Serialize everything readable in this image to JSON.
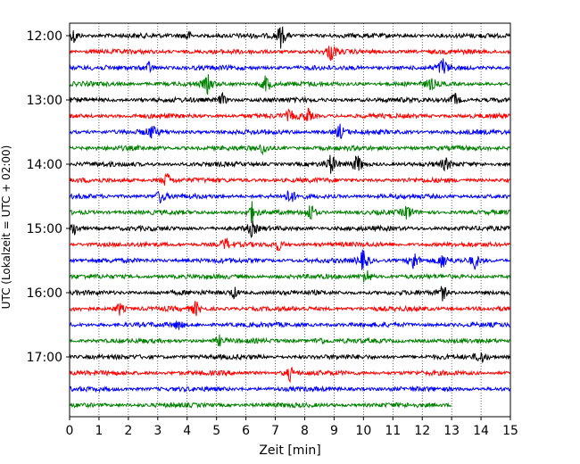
{
  "chart_data": {
    "type": "line",
    "title": "",
    "xlabel": "Zeit  [min]",
    "ylabel": "UTC (Lokalzeit = UTC + 02:00)",
    "xlim": [
      0,
      15
    ],
    "x_ticks": [
      "0",
      "1",
      "2",
      "3",
      "4",
      "5",
      "6",
      "7",
      "8",
      "9",
      "10",
      "11",
      "12",
      "13",
      "14",
      "15"
    ],
    "y_ticks": [
      "12:00",
      "13:00",
      "14:00",
      "15:00",
      "16:00",
      "17:00"
    ],
    "trace_interval_min": 15,
    "first_trace": "12:00",
    "grid": "vertical-dotted",
    "trace_colors": [
      "#000000",
      "#ff0000",
      "#0000ff",
      "#008000"
    ],
    "traces": [
      {
        "start": "12:00",
        "color": "#000000",
        "end_min": 15,
        "events": [
          [
            0.15,
            2.0
          ],
          [
            4.0,
            1.5
          ],
          [
            7.2,
            3.2
          ]
        ]
      },
      {
        "start": "12:15",
        "color": "#ff0000",
        "end_min": 15,
        "events": [
          [
            8.9,
            2.4
          ]
        ]
      },
      {
        "start": "12:30",
        "color": "#0000ff",
        "end_min": 15,
        "events": [
          [
            2.7,
            1.5
          ],
          [
            12.7,
            2.6
          ]
        ]
      },
      {
        "start": "12:45",
        "color": "#008000",
        "end_min": 15,
        "events": [
          [
            4.7,
            2.2
          ],
          [
            6.7,
            2.6
          ],
          [
            12.3,
            1.5
          ]
        ]
      },
      {
        "start": "13:00",
        "color": "#000000",
        "end_min": 15,
        "events": [
          [
            5.2,
            1.5
          ],
          [
            13.1,
            2.0
          ]
        ]
      },
      {
        "start": "13:15",
        "color": "#ff0000",
        "end_min": 15,
        "events": [
          [
            7.5,
            1.5
          ],
          [
            8.1,
            2.0
          ]
        ]
      },
      {
        "start": "13:30",
        "color": "#0000ff",
        "end_min": 15,
        "events": [
          [
            2.8,
            1.8
          ],
          [
            9.2,
            2.0
          ]
        ]
      },
      {
        "start": "13:45",
        "color": "#008000",
        "end_min": 15,
        "events": [
          [
            6.6,
            1.5
          ]
        ]
      },
      {
        "start": "14:00",
        "color": "#000000",
        "end_min": 15,
        "events": [
          [
            8.9,
            2.6
          ],
          [
            9.8,
            2.6
          ],
          [
            12.8,
            1.5
          ]
        ]
      },
      {
        "start": "14:15",
        "color": "#ff0000",
        "end_min": 15,
        "events": [
          [
            3.3,
            2.2
          ]
        ]
      },
      {
        "start": "14:30",
        "color": "#0000ff",
        "end_min": 15,
        "events": [
          [
            3.1,
            1.8
          ],
          [
            7.5,
            2.0
          ]
        ]
      },
      {
        "start": "14:45",
        "color": "#008000",
        "end_min": 15,
        "events": [
          [
            6.2,
            2.6
          ],
          [
            8.2,
            2.6
          ],
          [
            11.5,
            2.0
          ]
        ]
      },
      {
        "start": "15:00",
        "color": "#000000",
        "end_min": 15,
        "events": [
          [
            0.15,
            2.0
          ],
          [
            6.2,
            1.8
          ]
        ]
      },
      {
        "start": "15:15",
        "color": "#ff0000",
        "end_min": 15,
        "events": [
          [
            5.3,
            1.6
          ],
          [
            7.1,
            1.6
          ]
        ]
      },
      {
        "start": "15:30",
        "color": "#0000ff",
        "end_min": 15,
        "events": [
          [
            10.0,
            3.0
          ],
          [
            11.7,
            3.0
          ],
          [
            12.7,
            2.0
          ],
          [
            13.8,
            2.0
          ]
        ]
      },
      {
        "start": "15:45",
        "color": "#008000",
        "end_min": 15,
        "events": [
          [
            10.1,
            2.4
          ]
        ]
      },
      {
        "start": "16:00",
        "color": "#000000",
        "end_min": 15,
        "events": [
          [
            5.6,
            1.5
          ],
          [
            12.7,
            1.8
          ]
        ]
      },
      {
        "start": "16:15",
        "color": "#ff0000",
        "end_min": 15,
        "events": [
          [
            1.7,
            1.6
          ],
          [
            4.3,
            1.8
          ]
        ]
      },
      {
        "start": "16:30",
        "color": "#0000ff",
        "end_min": 15,
        "events": [
          [
            3.7,
            1.2
          ]
        ]
      },
      {
        "start": "16:45",
        "color": "#008000",
        "end_min": 15,
        "events": [
          [
            5.1,
            1.2
          ],
          [
            8.5,
            1.2
          ]
        ]
      },
      {
        "start": "17:00",
        "color": "#000000",
        "end_min": 15,
        "events": [
          [
            14.0,
            1.8
          ]
        ]
      },
      {
        "start": "17:15",
        "color": "#ff0000",
        "end_min": 15,
        "events": [
          [
            7.5,
            1.8
          ]
        ]
      },
      {
        "start": "17:30",
        "color": "#0000ff",
        "end_min": 15,
        "events": []
      },
      {
        "start": "17:45",
        "color": "#008000",
        "end_min": 13,
        "events": []
      }
    ]
  }
}
